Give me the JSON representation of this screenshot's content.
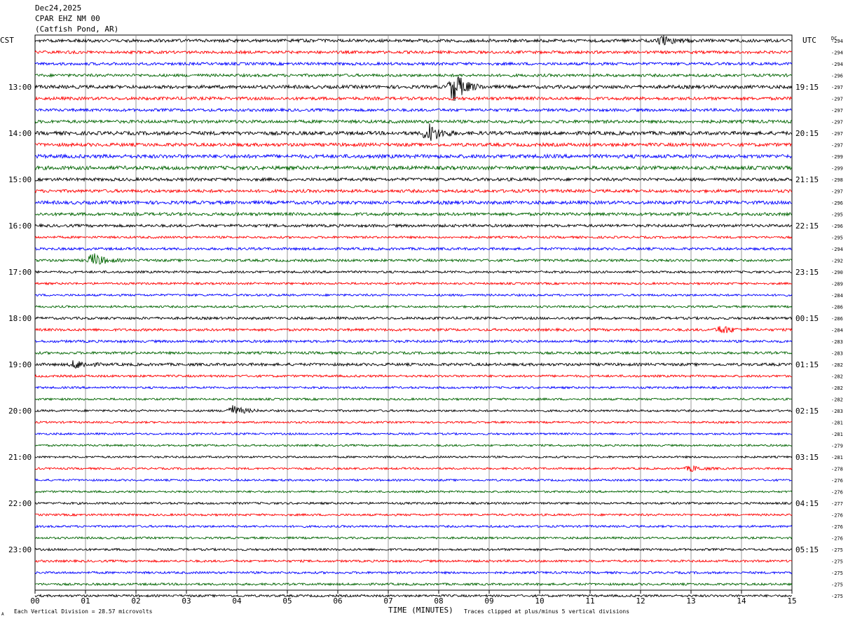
{
  "header": {
    "date": "Dec24,2025",
    "station": "CPAR EHZ NM 00",
    "location": "(Catfish Pond, AR)"
  },
  "labels": {
    "left_tz": "CST",
    "right_tz": "UTC",
    "dc": "DC",
    "xlabel": "TIME (MINUTES)",
    "footer_left": "Each Vertical Division =   28.57 microvolts",
    "footer_right": "Traces clipped at plus/minus 5 vertical divisions",
    "corner_mark": "A"
  },
  "colors": {
    "trace_cycle": [
      "#000000",
      "#ff0000",
      "#0000ff",
      "#006400"
    ],
    "grid": "#808080"
  },
  "chart_data": {
    "type": "line",
    "title": "CPAR EHZ NM 00 (Catfish Pond, AR)",
    "xlabel": "TIME (MINUTES)",
    "xlim": [
      0,
      15
    ],
    "x_ticks": [
      "00",
      "01",
      "02",
      "03",
      "04",
      "05",
      "06",
      "07",
      "08",
      "09",
      "10",
      "11",
      "12",
      "13",
      "14",
      "15"
    ],
    "left_hour_labels": [
      "13:00",
      "14:00",
      "15:00",
      "16:00",
      "17:00",
      "18:00",
      "19:00",
      "20:00",
      "21:00",
      "22:00",
      "23:00"
    ],
    "right_hour_labels": [
      "19:15",
      "20:15",
      "21:15",
      "22:15",
      "23:15",
      "00:15",
      "01:15",
      "02:15",
      "03:15",
      "04:15",
      "05:15"
    ],
    "dc_offsets": [
      -294,
      -294,
      -294,
      -296,
      -297,
      -297,
      -297,
      -297,
      -297,
      -297,
      -299,
      -299,
      -298,
      -297,
      -296,
      -295,
      -296,
      -295,
      -294,
      -292,
      -290,
      -289,
      -284,
      -286,
      -286,
      -284,
      -283,
      -283,
      -282,
      -282,
      -282,
      -282,
      -283,
      -281,
      -281,
      -279,
      -281,
      -278,
      -276,
      -276,
      -277,
      -276,
      -276,
      -276,
      -275,
      -275,
      -275,
      -275,
      -275
    ],
    "trace_amplitude": [
      2.2,
      2.0,
      2.0,
      2.0,
      2.4,
      2.2,
      2.0,
      2.2,
      2.6,
      2.4,
      2.6,
      2.6,
      2.2,
      2.2,
      2.4,
      2.2,
      2.0,
      1.6,
      1.8,
      1.8,
      1.6,
      1.5,
      1.5,
      1.5,
      1.8,
      1.8,
      1.8,
      1.8,
      2.0,
      1.6,
      1.5,
      1.5,
      1.5,
      1.4,
      1.4,
      1.4,
      1.4,
      1.4,
      1.4,
      1.4,
      1.5,
      1.5,
      1.5,
      1.5,
      1.6,
      1.6,
      1.6,
      1.6,
      1.6
    ],
    "events": [
      {
        "trace": 0,
        "minute": 12.45,
        "amplitude": 6
      },
      {
        "trace": 4,
        "minute": 8.3,
        "amplitude": 22
      },
      {
        "trace": 8,
        "minute": 7.8,
        "amplitude": 14
      },
      {
        "trace": 19,
        "minute": 1.15,
        "amplitude": 10
      },
      {
        "trace": 25,
        "minute": 13.6,
        "amplitude": 6
      },
      {
        "trace": 28,
        "minute": 0.8,
        "amplitude": 6
      },
      {
        "trace": 32,
        "minute": 3.9,
        "amplitude": 8
      },
      {
        "trace": 37,
        "minute": 13.0,
        "amplitude": 4
      }
    ]
  }
}
